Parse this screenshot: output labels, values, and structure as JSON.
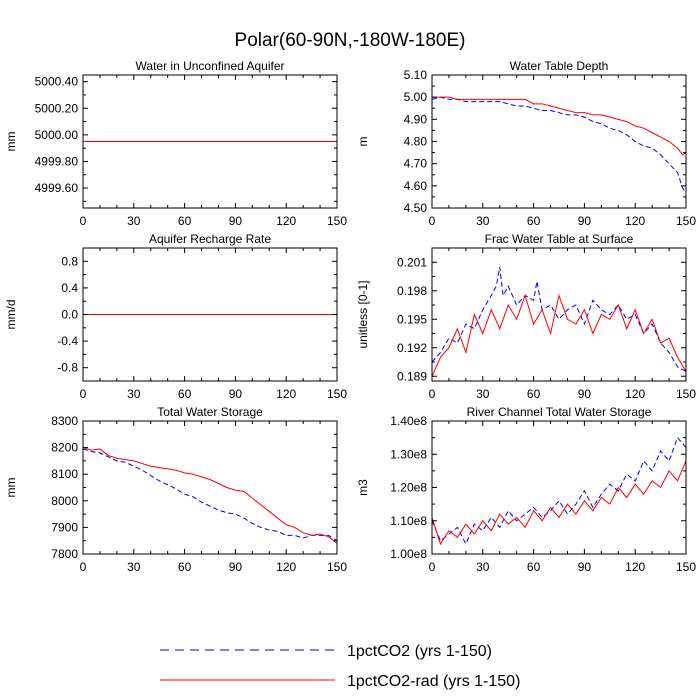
{
  "figure": {
    "title": "Polar(60-90N,-180W-180E)",
    "legend": [
      {
        "label": "1pctCO2 (yrs 1-150)",
        "color": "#0000ff",
        "style": "dashed"
      },
      {
        "label": "1pctCO2-rad (yrs 1-150)",
        "color": "#ff0000",
        "style": "solid"
      }
    ]
  },
  "chart_data": [
    {
      "type": "line",
      "title": "Water in Unconfined Aquifer",
      "xlabel": "",
      "ylabel": "mm",
      "xlim": [
        0,
        150
      ],
      "ylim": [
        4999.45,
        5000.45
      ],
      "xticks": [
        0,
        30,
        60,
        90,
        120,
        150
      ],
      "yticks": [
        4999.6,
        4999.8,
        5000.0,
        5000.2,
        5000.4
      ],
      "ytick_labels": [
        "4999.60",
        "4999.80",
        "5000.00",
        "5000.20",
        "5000.40"
      ],
      "series": [
        {
          "name": "1pctCO2 (yrs 1-150)",
          "color": "#0000ff",
          "style": "dashed",
          "x": [
            0,
            150
          ],
          "y": [
            4999.95,
            4999.95
          ]
        },
        {
          "name": "1pctCO2-rad (yrs 1-150)",
          "color": "#ff0000",
          "style": "solid",
          "x": [
            0,
            150
          ],
          "y": [
            4999.95,
            4999.95
          ]
        }
      ]
    },
    {
      "type": "line",
      "title": "Water Table Depth",
      "xlabel": "",
      "ylabel": "m",
      "xlim": [
        0,
        150
      ],
      "ylim": [
        4.5,
        5.1
      ],
      "xticks": [
        0,
        30,
        60,
        90,
        120,
        150
      ],
      "yticks": [
        4.5,
        4.6,
        4.7,
        4.8,
        4.9,
        5.0,
        5.1
      ],
      "ytick_labels": [
        "4.50",
        "4.60",
        "4.70",
        "4.80",
        "4.90",
        "5.00",
        "5.10"
      ],
      "series": [
        {
          "name": "1pctCO2 (yrs 1-150)",
          "color": "#0000ff",
          "style": "dashed",
          "x": [
            0,
            5,
            10,
            15,
            20,
            25,
            30,
            35,
            40,
            45,
            50,
            55,
            60,
            65,
            70,
            75,
            80,
            85,
            90,
            95,
            100,
            105,
            110,
            115,
            120,
            125,
            130,
            135,
            140,
            145,
            148,
            150
          ],
          "y": [
            4.99,
            5.0,
            4.99,
            4.99,
            4.98,
            4.98,
            4.98,
            4.98,
            4.98,
            4.97,
            4.96,
            4.96,
            4.95,
            4.94,
            4.94,
            4.93,
            4.92,
            4.92,
            4.91,
            4.89,
            4.88,
            4.86,
            4.85,
            4.83,
            4.8,
            4.78,
            4.77,
            4.74,
            4.7,
            4.66,
            4.59,
            4.57
          ]
        },
        {
          "name": "1pctCO2-rad (yrs 1-150)",
          "color": "#ff0000",
          "style": "solid",
          "x": [
            0,
            5,
            10,
            15,
            20,
            25,
            30,
            35,
            40,
            45,
            50,
            55,
            60,
            65,
            70,
            75,
            80,
            85,
            90,
            95,
            100,
            105,
            110,
            115,
            120,
            125,
            130,
            135,
            140,
            145,
            148,
            150
          ],
          "y": [
            5.0,
            5.0,
            5.0,
            4.99,
            4.99,
            4.99,
            4.99,
            4.99,
            4.99,
            4.99,
            4.99,
            4.99,
            4.97,
            4.97,
            4.96,
            4.95,
            4.94,
            4.93,
            4.93,
            4.92,
            4.92,
            4.91,
            4.9,
            4.89,
            4.87,
            4.86,
            4.84,
            4.82,
            4.8,
            4.77,
            4.74,
            4.75
          ]
        }
      ]
    },
    {
      "type": "line",
      "title": "Aquifer Recharge Rate",
      "xlabel": "",
      "ylabel": "mm/d",
      "xlim": [
        0,
        150
      ],
      "ylim": [
        -1.0,
        1.0
      ],
      "xticks": [
        0,
        30,
        60,
        90,
        120,
        150
      ],
      "yticks": [
        -0.8,
        -0.4,
        0.0,
        0.4,
        0.8
      ],
      "ytick_labels": [
        "-0.8",
        "-0.4",
        "0.0",
        "0.4",
        "0.8"
      ],
      "series": [
        {
          "name": "1pctCO2 (yrs 1-150)",
          "color": "#0000ff",
          "style": "dashed",
          "x": [
            0,
            150
          ],
          "y": [
            0.0,
            0.0
          ]
        },
        {
          "name": "1pctCO2-rad (yrs 1-150)",
          "color": "#ff0000",
          "style": "solid",
          "x": [
            0,
            150
          ],
          "y": [
            0.0,
            0.0
          ]
        }
      ]
    },
    {
      "type": "line",
      "title": "Frac Water Table at Surface",
      "xlabel": "",
      "ylabel": "unitless [0-1]",
      "xlim": [
        0,
        150
      ],
      "ylim": [
        0.1885,
        0.2025
      ],
      "xticks": [
        0,
        30,
        60,
        90,
        120,
        150
      ],
      "yticks": [
        0.189,
        0.192,
        0.195,
        0.198,
        0.201
      ],
      "ytick_labels": [
        "0.189",
        "0.192",
        "0.195",
        "0.198",
        "0.201"
      ],
      "series": [
        {
          "name": "1pctCO2 (yrs 1-150)",
          "color": "#0000ff",
          "style": "dashed",
          "x": [
            0,
            5,
            10,
            15,
            20,
            25,
            30,
            35,
            38,
            40,
            42,
            45,
            50,
            55,
            60,
            62,
            65,
            70,
            75,
            80,
            85,
            90,
            95,
            100,
            105,
            110,
            115,
            120,
            125,
            130,
            135,
            140,
            145,
            150
          ],
          "y": [
            0.1905,
            0.1915,
            0.193,
            0.1925,
            0.1945,
            0.194,
            0.196,
            0.1975,
            0.1985,
            0.2005,
            0.1975,
            0.1985,
            0.1965,
            0.1975,
            0.197,
            0.199,
            0.196,
            0.1965,
            0.195,
            0.196,
            0.1965,
            0.1945,
            0.197,
            0.196,
            0.1955,
            0.1965,
            0.195,
            0.1955,
            0.1935,
            0.1945,
            0.1925,
            0.1915,
            0.19,
            0.1895
          ]
        },
        {
          "name": "1pctCO2-rad (yrs 1-150)",
          "color": "#ff0000",
          "style": "solid",
          "x": [
            0,
            5,
            10,
            15,
            20,
            25,
            30,
            35,
            40,
            45,
            50,
            55,
            60,
            65,
            70,
            75,
            80,
            85,
            90,
            95,
            100,
            105,
            110,
            115,
            120,
            125,
            130,
            135,
            140,
            145,
            150
          ],
          "y": [
            0.189,
            0.191,
            0.192,
            0.194,
            0.1915,
            0.1955,
            0.1935,
            0.196,
            0.194,
            0.1965,
            0.195,
            0.1975,
            0.1945,
            0.196,
            0.1935,
            0.1975,
            0.195,
            0.1945,
            0.196,
            0.1935,
            0.1955,
            0.195,
            0.1965,
            0.194,
            0.196,
            0.1935,
            0.195,
            0.1925,
            0.193,
            0.191,
            0.1895
          ]
        }
      ]
    },
    {
      "type": "line",
      "title": "Total Water Storage",
      "xlabel": "",
      "ylabel": "mm",
      "xlim": [
        0,
        150
      ],
      "ylim": [
        7800,
        8300
      ],
      "xticks": [
        0,
        30,
        60,
        90,
        120,
        150
      ],
      "yticks": [
        7800,
        7900,
        8000,
        8100,
        8200,
        8300
      ],
      "ytick_labels": [
        "7800",
        "7900",
        "8000",
        "8100",
        "8200",
        "8300"
      ],
      "series": [
        {
          "name": "1pctCO2 (yrs 1-150)",
          "color": "#0000ff",
          "style": "dashed",
          "x": [
            0,
            5,
            10,
            15,
            20,
            25,
            30,
            35,
            40,
            45,
            50,
            55,
            60,
            65,
            70,
            75,
            80,
            85,
            90,
            95,
            100,
            105,
            110,
            115,
            120,
            125,
            130,
            135,
            140,
            145,
            150
          ],
          "y": [
            8195,
            8185,
            8180,
            8165,
            8150,
            8145,
            8130,
            8115,
            8095,
            8075,
            8060,
            8045,
            8025,
            8015,
            7995,
            7980,
            7965,
            7955,
            7950,
            7935,
            7915,
            7900,
            7890,
            7885,
            7870,
            7870,
            7860,
            7870,
            7870,
            7870,
            7850
          ]
        },
        {
          "name": "1pctCO2-rad (yrs 1-150)",
          "color": "#ff0000",
          "style": "solid",
          "x": [
            0,
            5,
            10,
            15,
            20,
            25,
            30,
            35,
            40,
            45,
            50,
            55,
            60,
            65,
            70,
            75,
            80,
            85,
            90,
            95,
            100,
            105,
            110,
            115,
            120,
            125,
            130,
            135,
            140,
            145,
            150
          ],
          "y": [
            8200,
            8190,
            8195,
            8170,
            8160,
            8155,
            8150,
            8140,
            8130,
            8125,
            8120,
            8115,
            8105,
            8100,
            8090,
            8080,
            8065,
            8050,
            8040,
            8035,
            8010,
            7985,
            7960,
            7935,
            7910,
            7900,
            7880,
            7870,
            7875,
            7865,
            7840
          ]
        }
      ]
    },
    {
      "type": "line",
      "title": "River Channel Total Water Storage",
      "xlabel": "",
      "ylabel": "m3",
      "xlim": [
        0,
        150
      ],
      "ylim": [
        100000000.0,
        140000000.0
      ],
      "xticks": [
        0,
        30,
        60,
        90,
        120,
        150
      ],
      "yticks": [
        100000000.0,
        110000000.0,
        120000000.0,
        130000000.0,
        140000000.0
      ],
      "ytick_labels": [
        "1.00e8",
        "1.10e8",
        "1.20e8",
        "1.30e8",
        "1.40e8"
      ],
      "series": [
        {
          "name": "1pctCO2 (yrs 1-150)",
          "color": "#0000ff",
          "style": "dashed",
          "x": [
            0,
            5,
            10,
            15,
            20,
            25,
            30,
            35,
            40,
            45,
            50,
            55,
            60,
            65,
            70,
            75,
            80,
            85,
            90,
            95,
            100,
            105,
            110,
            115,
            120,
            125,
            130,
            135,
            140,
            145,
            150
          ],
          "y": [
            110000000.0,
            104000000.0,
            106000000.0,
            108000000.0,
            103000000.0,
            109000000.0,
            107000000.0,
            111000000.0,
            108000000.0,
            113000000.0,
            110000000.0,
            112000000.0,
            114000000.0,
            111000000.0,
            113000000.0,
            116000000.0,
            112000000.0,
            115000000.0,
            119000000.0,
            114000000.0,
            118000000.0,
            121000000.0,
            119000000.0,
            124000000.0,
            122000000.0,
            128000000.0,
            125000000.0,
            131000000.0,
            128000000.0,
            135000000.0,
            132000000.0
          ]
        },
        {
          "name": "1pctCO2-rad (yrs 1-150)",
          "color": "#ff0000",
          "style": "solid",
          "x": [
            0,
            5,
            10,
            15,
            20,
            25,
            30,
            35,
            40,
            45,
            50,
            55,
            60,
            65,
            70,
            75,
            80,
            85,
            90,
            95,
            100,
            105,
            110,
            115,
            120,
            125,
            130,
            135,
            140,
            145,
            150
          ],
          "y": [
            111000000.0,
            103000000.0,
            107000000.0,
            105000000.0,
            109000000.0,
            106000000.0,
            110000000.0,
            107000000.0,
            112000000.0,
            109000000.0,
            111000000.0,
            108000000.0,
            113000000.0,
            110000000.0,
            114000000.0,
            111000000.0,
            115000000.0,
            112000000.0,
            116000000.0,
            113000000.0,
            117000000.0,
            115000000.0,
            120000000.0,
            117000000.0,
            121000000.0,
            118000000.0,
            122000000.0,
            120000000.0,
            125000000.0,
            122000000.0,
            128000000.0
          ]
        }
      ]
    }
  ]
}
